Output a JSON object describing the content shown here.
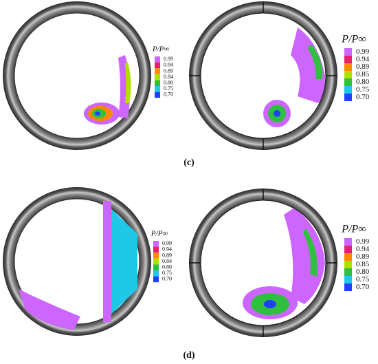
{
  "figures": [
    {
      "caption": "(c)",
      "plots": [
        {
          "legend_title": "P/P∞",
          "legend_labels": [
            "0.99",
            "0.94",
            "0.89",
            "0.84",
            "0.80",
            "0.75",
            "0.70"
          ]
        },
        {
          "legend_title": "P/P∞",
          "legend_labels": [
            "0.99",
            "0.94",
            "0.89",
            "0.85",
            "0.80",
            "0.75",
            "0.70"
          ]
        }
      ]
    },
    {
      "caption": "(d)",
      "plots": [
        {
          "legend_title": "P/P∞",
          "legend_labels": [
            "0.99",
            "0.94",
            "0.89",
            "0.84",
            "0.80",
            "0.75",
            "0.70"
          ]
        },
        {
          "legend_title": "P/P∞",
          "legend_labels": [
            "0.99",
            "0.94",
            "0.89",
            "0.85",
            "0.80",
            "0.75",
            "0.70"
          ]
        }
      ]
    }
  ]
}
